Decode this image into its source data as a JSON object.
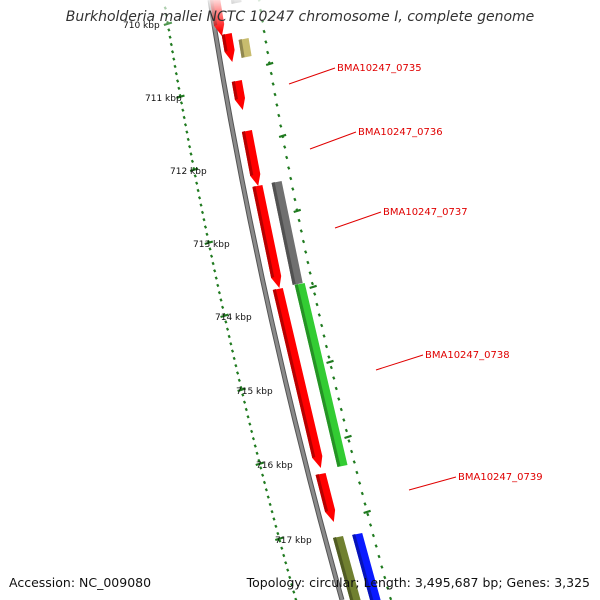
{
  "title": "Burkholderia mallei NCTC 10247 chromosome I, complete genome",
  "footer": {
    "accession": "Accession: NC_009080",
    "summary": "Topology: circular; Length: 3,495,687 bp; Genes: 3,325"
  },
  "scale": {
    "partial_label": "710 kbp",
    "ticks": [
      "711 kbp",
      "712 kbp",
      "713 kbp",
      "714 kbp",
      "715 kbp",
      "716 kbp",
      "717 kbp"
    ]
  },
  "gene_labels": [
    "BMA10247_0735",
    "BMA10247_0736",
    "BMA10247_0737",
    "BMA10247_0738",
    "BMA10247_0739"
  ],
  "colors": {
    "gene_red": "#ff0000",
    "gene_gray": "#707070",
    "gene_green": "#33cc33",
    "gene_khaki": "#c8bc6e",
    "gene_olive": "#708030",
    "gene_blue": "#0a1aff",
    "backbone": "#8a8a8a",
    "tick_green": "#1f7a1f",
    "label_red": "#e00000"
  }
}
